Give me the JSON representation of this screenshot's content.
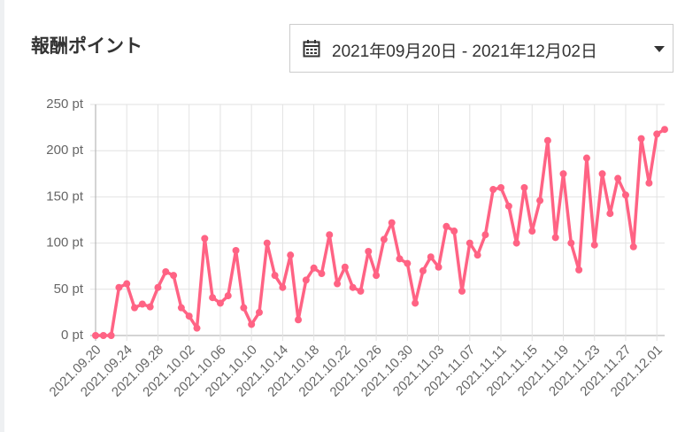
{
  "header": {
    "title": "報酬ポイント"
  },
  "date_picker": {
    "label": "2021年09月20日 - 2021年12月02日"
  },
  "chart_data": {
    "type": "line",
    "categories": [
      "2021.09.20",
      null,
      null,
      null,
      "2021.09.24",
      null,
      null,
      null,
      "2021.09.28",
      null,
      null,
      null,
      "2021.10.02",
      null,
      null,
      null,
      "2021.10.06",
      null,
      null,
      null,
      "2021.10.10",
      null,
      null,
      null,
      "2021.10.14",
      null,
      null,
      null,
      "2021.10.18",
      null,
      null,
      null,
      "2021.10.22",
      null,
      null,
      null,
      "2021.10.26",
      null,
      null,
      null,
      "2021.10.30",
      null,
      null,
      null,
      "2021.11.03",
      null,
      null,
      null,
      "2021.11.07",
      null,
      null,
      null,
      "2021.11.11",
      null,
      null,
      null,
      "2021.11.15",
      null,
      null,
      null,
      "2021.11.19",
      null,
      null,
      null,
      "2021.11.23",
      null,
      null,
      null,
      "2021.11.27",
      null,
      null,
      null,
      "2021.12.01",
      null
    ],
    "series": [
      {
        "color": "#ff6384",
        "values": [
          0,
          0,
          0,
          52,
          56,
          30,
          34,
          31,
          52,
          69,
          65,
          30,
          21,
          8,
          105,
          41,
          35,
          43,
          92,
          30,
          12,
          25,
          100,
          65,
          52,
          87,
          17,
          60,
          73,
          67,
          109,
          56,
          74,
          52,
          48,
          91,
          65,
          104,
          122,
          83,
          78,
          35,
          70,
          85,
          74,
          118,
          113,
          48,
          100,
          87,
          109,
          158,
          160,
          140,
          100,
          160,
          113,
          146,
          211,
          106,
          175,
          100,
          71,
          192,
          98,
          175,
          132,
          170,
          152,
          96,
          213,
          165,
          218,
          223
        ]
      }
    ],
    "ylim": [
      0,
      250
    ],
    "yticks": [
      {
        "value": 0,
        "label": "0 pt"
      },
      {
        "value": 50,
        "label": "50 pt"
      },
      {
        "value": 100,
        "label": "100 pt"
      },
      {
        "value": 150,
        "label": "150 pt"
      },
      {
        "value": 200,
        "label": "200 pt"
      },
      {
        "value": 250,
        "label": "250 pt"
      }
    ],
    "grid": true
  }
}
